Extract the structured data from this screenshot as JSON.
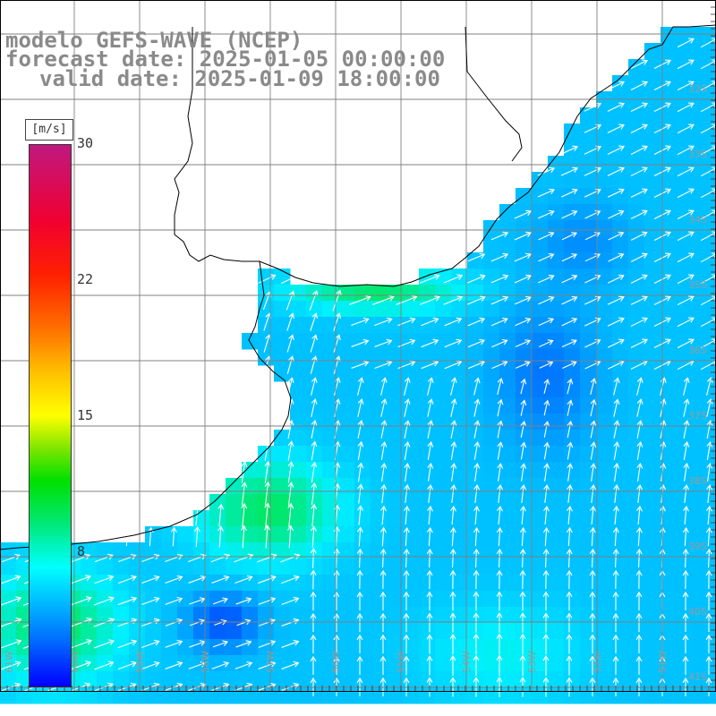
{
  "title": {
    "model_line": "modelo GEFS-WAVE (NCEP)",
    "forecast_line": "forecast date: 2025-01-05 00:00:00",
    "valid_line": "valid date: 2025-01-09 18:00:00"
  },
  "colorbar": {
    "unit": "[m/s]",
    "ticks": [
      "30",
      "22",
      "15",
      "8"
    ],
    "range_min": 0,
    "range_max": 30,
    "colors": [
      "#0000ff",
      "#00aaff",
      "#00ffff",
      "#00e000",
      "#ffff00",
      "#ff7000",
      "#ff0000",
      "#c01880"
    ]
  },
  "map": {
    "background": "#ffffff",
    "graticule_color": "#808080",
    "coastline_color": "#000000",
    "arrow_color": "#ffffff",
    "lat_labels_right": [
      "32S",
      "33S",
      "34S",
      "35S",
      "36S",
      "37S",
      "38S",
      "39S",
      "40S",
      "41S"
    ],
    "lon_labels_bottom": [
      "61W",
      "60W",
      "59W",
      "58W",
      "57W",
      "56W",
      "55W",
      "54W",
      "53W",
      "52W",
      "51W"
    ]
  }
}
